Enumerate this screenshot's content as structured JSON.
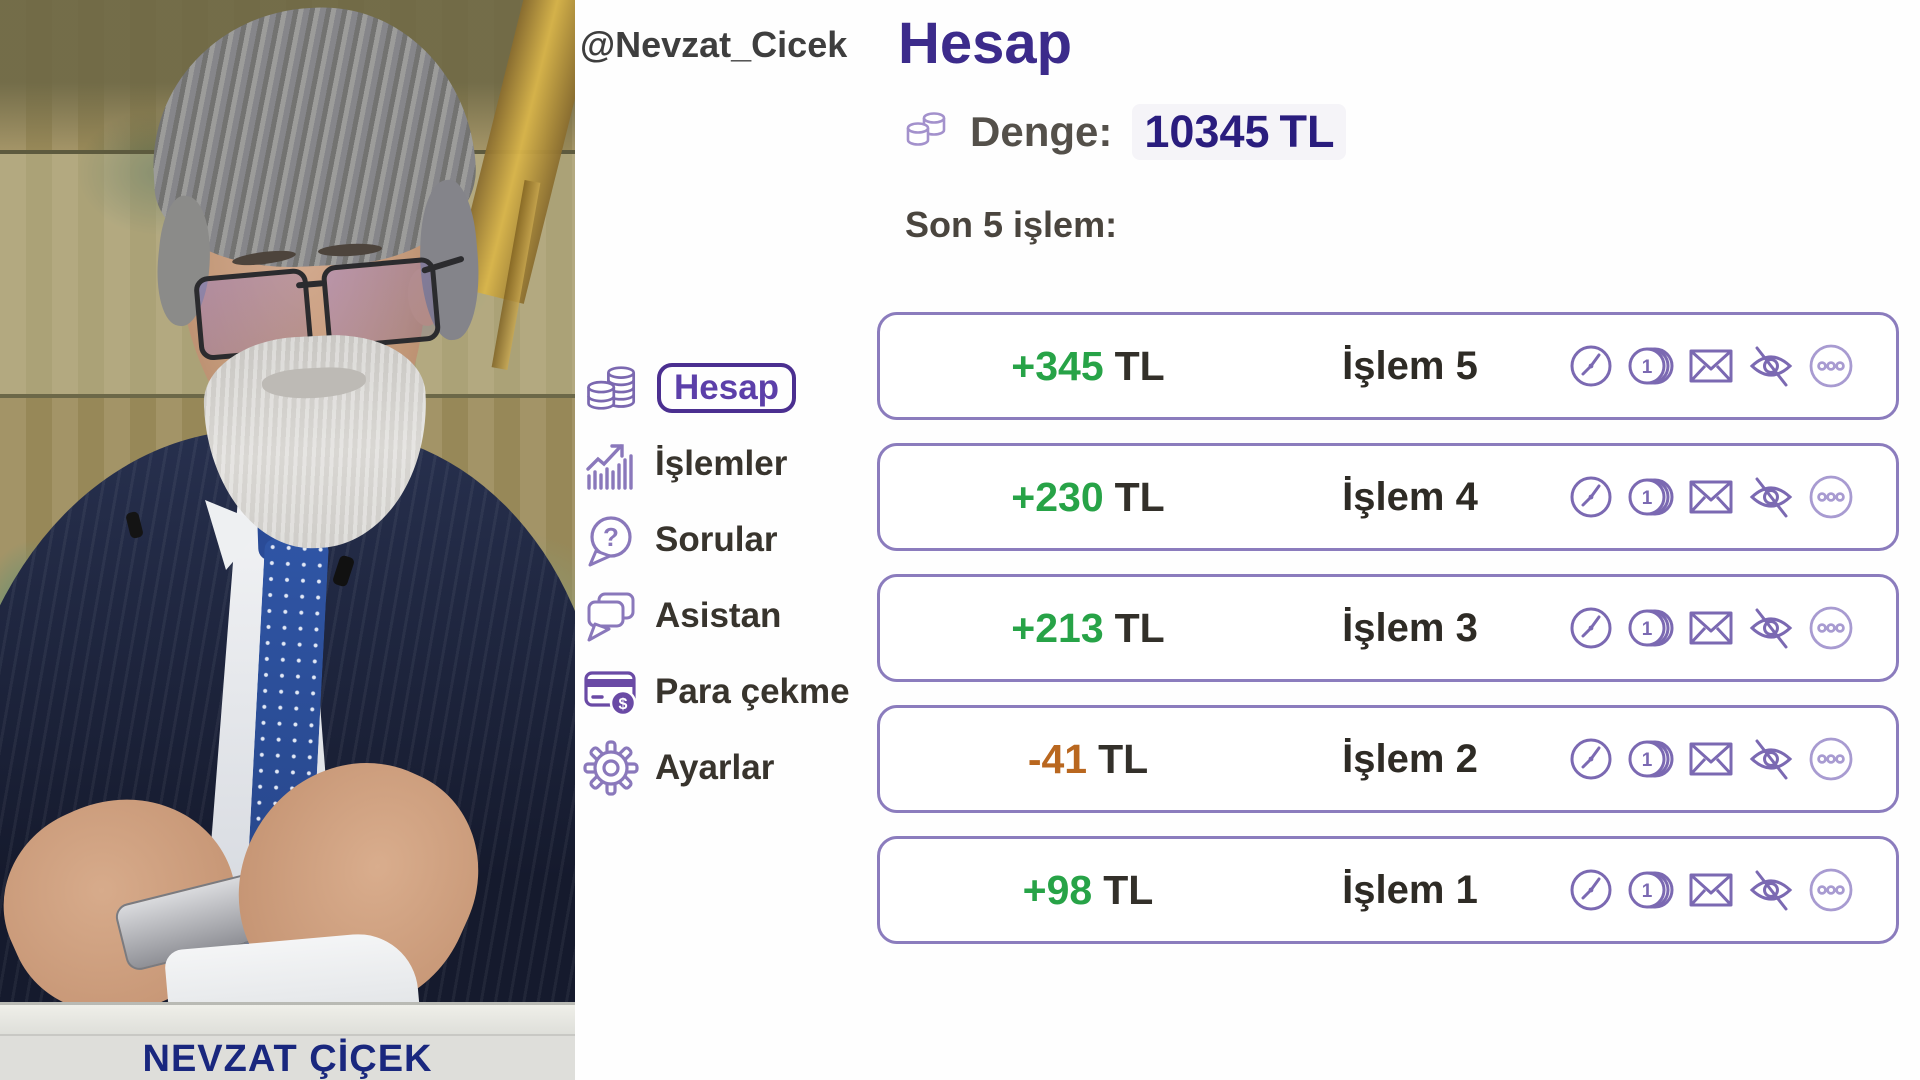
{
  "watermark": {
    "text": "@Nevzat_Cicek"
  },
  "photo": {
    "caption": "NEVZAT ÇİÇEK"
  },
  "header": {
    "title": "Hesap",
    "balance_label": "Denge:",
    "balance_value": "10345",
    "balance_currency": "TL",
    "recent_label": "Son 5 işlem:"
  },
  "sidebar": {
    "items": [
      {
        "key": "hesap",
        "label": "Hesap",
        "icon": "coins-icon",
        "active": true
      },
      {
        "key": "islemler",
        "label": "İşlemler",
        "icon": "chart-icon",
        "active": false
      },
      {
        "key": "sorular",
        "label": "Sorular",
        "icon": "question-bubble-icon",
        "active": false
      },
      {
        "key": "asistan",
        "label": "Asistan",
        "icon": "chat-bubbles-icon",
        "active": false
      },
      {
        "key": "para-cekme",
        "label": "Para çekme",
        "icon": "card-withdraw-icon",
        "active": false
      },
      {
        "key": "ayarlar",
        "label": "Ayarlar",
        "icon": "gear-icon",
        "active": false
      }
    ]
  },
  "transactions": [
    {
      "amount": "+345",
      "currency": "TL",
      "label": "İşlem 5",
      "direction": "positive"
    },
    {
      "amount": "+230",
      "currency": "TL",
      "label": "İşlem 4",
      "direction": "positive"
    },
    {
      "amount": "+213",
      "currency": "TL",
      "label": "İşlem 3",
      "direction": "positive"
    },
    {
      "amount": "-41",
      "currency": "TL",
      "label": "İşlem 2",
      "direction": "negative"
    },
    {
      "amount": "+98",
      "currency": "TL",
      "label": "İşlem 1",
      "direction": "positive"
    }
  ],
  "row_icons": {
    "list": [
      "clock-icon",
      "coin-count-icon",
      "envelope-icon",
      "eye-off-icon",
      "ellipsis-icon"
    ],
    "coin_badge": "1"
  },
  "colors": {
    "title_indigo": "#3c2b8b",
    "balance_indigo": "#2a1d7e",
    "accent_purple": "#5c3fa9",
    "chip_border_purple": "#4b2f90",
    "row_border_purple": "#8b7cbd",
    "row_icon_purple": "#7b69b2",
    "ellipsis_purple": "#a89bd1",
    "positive_green": "#27a347",
    "negative_orange": "#b9671f",
    "text_dark": "#38342d",
    "caption_blue": "#19277e"
  }
}
